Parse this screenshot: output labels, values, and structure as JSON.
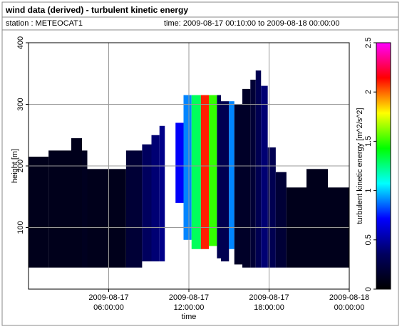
{
  "header": {
    "title": "wind data (derived) - turbulent kinetic energy",
    "station": "station : METEOCAT1",
    "time": "time: 2009-08-17 00:10:00 to 2009-08-18 00:00:00"
  },
  "chart_data": {
    "type": "heatmap",
    "xlabel": "time",
    "ylabel": "height [m]",
    "colorbar_label": "turbulent kinetic energy [m^2/s^2]",
    "xlim": [
      0,
      24
    ],
    "xticks": [
      {
        "value": 6,
        "label": "2009-08-17\n06:00:00"
      },
      {
        "value": 12,
        "label": "2009-08-17\n12:00:00"
      },
      {
        "value": 18,
        "label": "2009-08-17\n18:00:00"
      },
      {
        "value": 24,
        "label": "2009-08-18\n00:00:00"
      }
    ],
    "ylim": [
      0,
      400
    ],
    "yticks": [
      100,
      200,
      300,
      400
    ],
    "clim": [
      0,
      2.5
    ],
    "cticks": [
      0,
      0.5,
      1,
      1.5,
      2,
      2.5
    ],
    "colorscale": [
      "#000000",
      "#000060",
      "#0000ff",
      "#00ffff",
      "#00ff00",
      "#ffff00",
      "#ff0000",
      "#ff00ff"
    ],
    "grid": true,
    "cells": [
      {
        "x0": 0,
        "x1": 1.5,
        "bottom": 35,
        "top": 215,
        "value": 0.1
      },
      {
        "x0": 1.5,
        "x1": 3.2,
        "bottom": 35,
        "top": 225,
        "value": 0.1
      },
      {
        "x0": 3.2,
        "x1": 4,
        "bottom": 35,
        "top": 245,
        "value": 0.1
      },
      {
        "x0": 4,
        "x1": 4.4,
        "bottom": 35,
        "top": 225,
        "value": 0.12
      },
      {
        "x0": 4.4,
        "x1": 7.3,
        "bottom": 35,
        "top": 195,
        "value": 0.1
      },
      {
        "x0": 7.3,
        "x1": 8.5,
        "bottom": 35,
        "top": 225,
        "value": 0.2
      },
      {
        "x0": 8.5,
        "x1": 9.2,
        "bottom": 45,
        "top": 235,
        "value": 0.35
      },
      {
        "x0": 9.2,
        "x1": 9.8,
        "bottom": 45,
        "top": 250,
        "value": 0.4
      },
      {
        "x0": 9.8,
        "x1": 10.2,
        "bottom": 45,
        "top": 265,
        "value": 0.45
      },
      {
        "x0": 11,
        "x1": 11.6,
        "bottom": 140,
        "top": 270,
        "value": 0.7
      },
      {
        "x0": 11.6,
        "x1": 12.2,
        "bottom": 80,
        "top": 315,
        "value": 0.9
      },
      {
        "x0": 12.2,
        "x1": 12.9,
        "bottom": 65,
        "top": 315,
        "value": 1.3
      },
      {
        "x0": 12.9,
        "x1": 13.5,
        "bottom": 65,
        "top": 315,
        "value": 2.1
      },
      {
        "x0": 13.5,
        "x1": 14.1,
        "bottom": 70,
        "top": 315,
        "value": 1.5
      },
      {
        "x0": 14.1,
        "x1": 14.4,
        "bottom": 50,
        "top": 315,
        "value": 0.3
      },
      {
        "x0": 14.4,
        "x1": 15,
        "bottom": 45,
        "top": 305,
        "value": 0.3
      },
      {
        "x0": 15,
        "x1": 15.4,
        "bottom": 65,
        "top": 305,
        "value": 0.9
      },
      {
        "x0": 15.4,
        "x1": 16,
        "bottom": 40,
        "top": 300,
        "value": 0.15
      },
      {
        "x0": 16,
        "x1": 16.6,
        "bottom": 35,
        "top": 325,
        "value": 0.15
      },
      {
        "x0": 16.6,
        "x1": 17,
        "bottom": 35,
        "top": 340,
        "value": 0.2
      },
      {
        "x0": 17,
        "x1": 17.4,
        "bottom": 35,
        "top": 355,
        "value": 0.3
      },
      {
        "x0": 17.4,
        "x1": 17.9,
        "bottom": 35,
        "top": 330,
        "value": 0.4
      },
      {
        "x0": 17.9,
        "x1": 18.5,
        "bottom": 35,
        "top": 230,
        "value": 0.3
      },
      {
        "x0": 18.5,
        "x1": 19.3,
        "bottom": 35,
        "top": 190,
        "value": 0.2
      },
      {
        "x0": 19.3,
        "x1": 20.8,
        "bottom": 35,
        "top": 165,
        "value": 0.1
      },
      {
        "x0": 20.8,
        "x1": 22.4,
        "bottom": 35,
        "top": 195,
        "value": 0.1
      },
      {
        "x0": 22.4,
        "x1": 24,
        "bottom": 35,
        "top": 165,
        "value": 0.1
      }
    ]
  }
}
